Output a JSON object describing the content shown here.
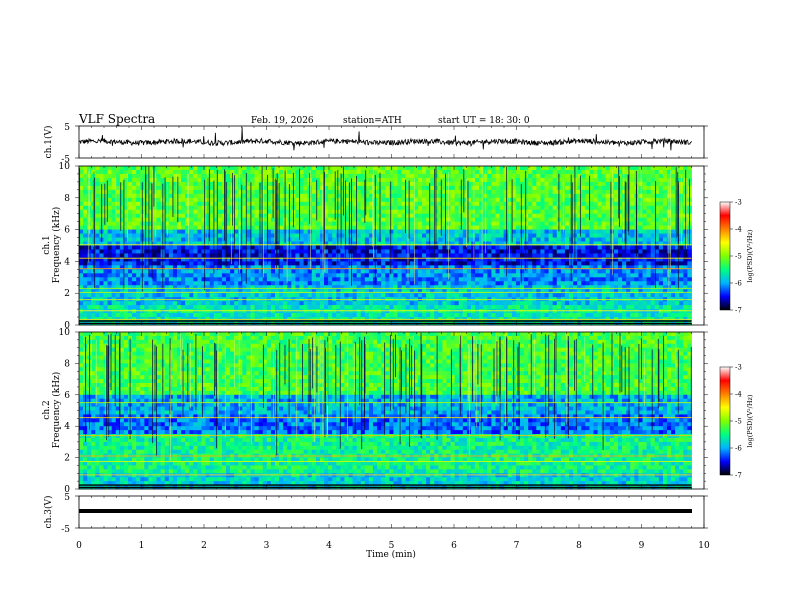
{
  "header": {
    "title": "VLF  Spectra",
    "date": "Feb. 19, 2026",
    "station": "station=ATH",
    "start": "start  UT  =   18: 30: 0"
  },
  "chart_data": [
    {
      "type": "line",
      "name": "ch1-waveform",
      "ylabel": "ch.1(V)",
      "ylim": [
        -5,
        5
      ],
      "yticks": [
        "5",
        "-5"
      ],
      "xlim": [
        0,
        10
      ],
      "x_end": 9.8,
      "baseline": 0
    },
    {
      "type": "heatmap",
      "name": "ch1-spectrogram",
      "ylabel_line1": "ch.1",
      "ylabel_line2": "Frequency  (kHz)",
      "ylim": [
        0,
        10
      ],
      "yticks": [
        "0",
        "2",
        "4",
        "6",
        "8",
        "10"
      ],
      "xlim": [
        0,
        10
      ],
      "x_end": 9.8
    },
    {
      "type": "heatmap",
      "name": "ch2-spectrogram",
      "ylabel_line1": "ch.2",
      "ylabel_line2": "Frequency  (kHz)",
      "ylim": [
        0,
        10
      ],
      "yticks": [
        "0",
        "2",
        "4",
        "6",
        "8",
        "10"
      ],
      "xlim": [
        0,
        10
      ],
      "x_end": 9.8
    },
    {
      "type": "line",
      "name": "ch3-waveform",
      "ylabel": "ch.3(V)",
      "ylim": [
        -5,
        5
      ],
      "yticks": [
        "5",
        "-5"
      ],
      "xlim": [
        0,
        10
      ],
      "x_end": 9.8,
      "baseline": 0,
      "xlabel": "Time  (min)",
      "xticks": [
        "0",
        "1",
        "2",
        "3",
        "4",
        "5",
        "6",
        "7",
        "8",
        "9",
        "10"
      ]
    }
  ],
  "colorbar": {
    "label": "log(PSD)(V²/Hz)",
    "ticks": [
      "-3",
      "-4",
      "-5",
      "-6",
      "-7"
    ],
    "range": [
      -7,
      -3
    ],
    "colors": [
      "#000000",
      "#0000ff",
      "#00b4ff",
      "#00ff80",
      "#80ff00",
      "#ffff00",
      "#ff8000",
      "#ff0000",
      "#ffffff"
    ]
  }
}
